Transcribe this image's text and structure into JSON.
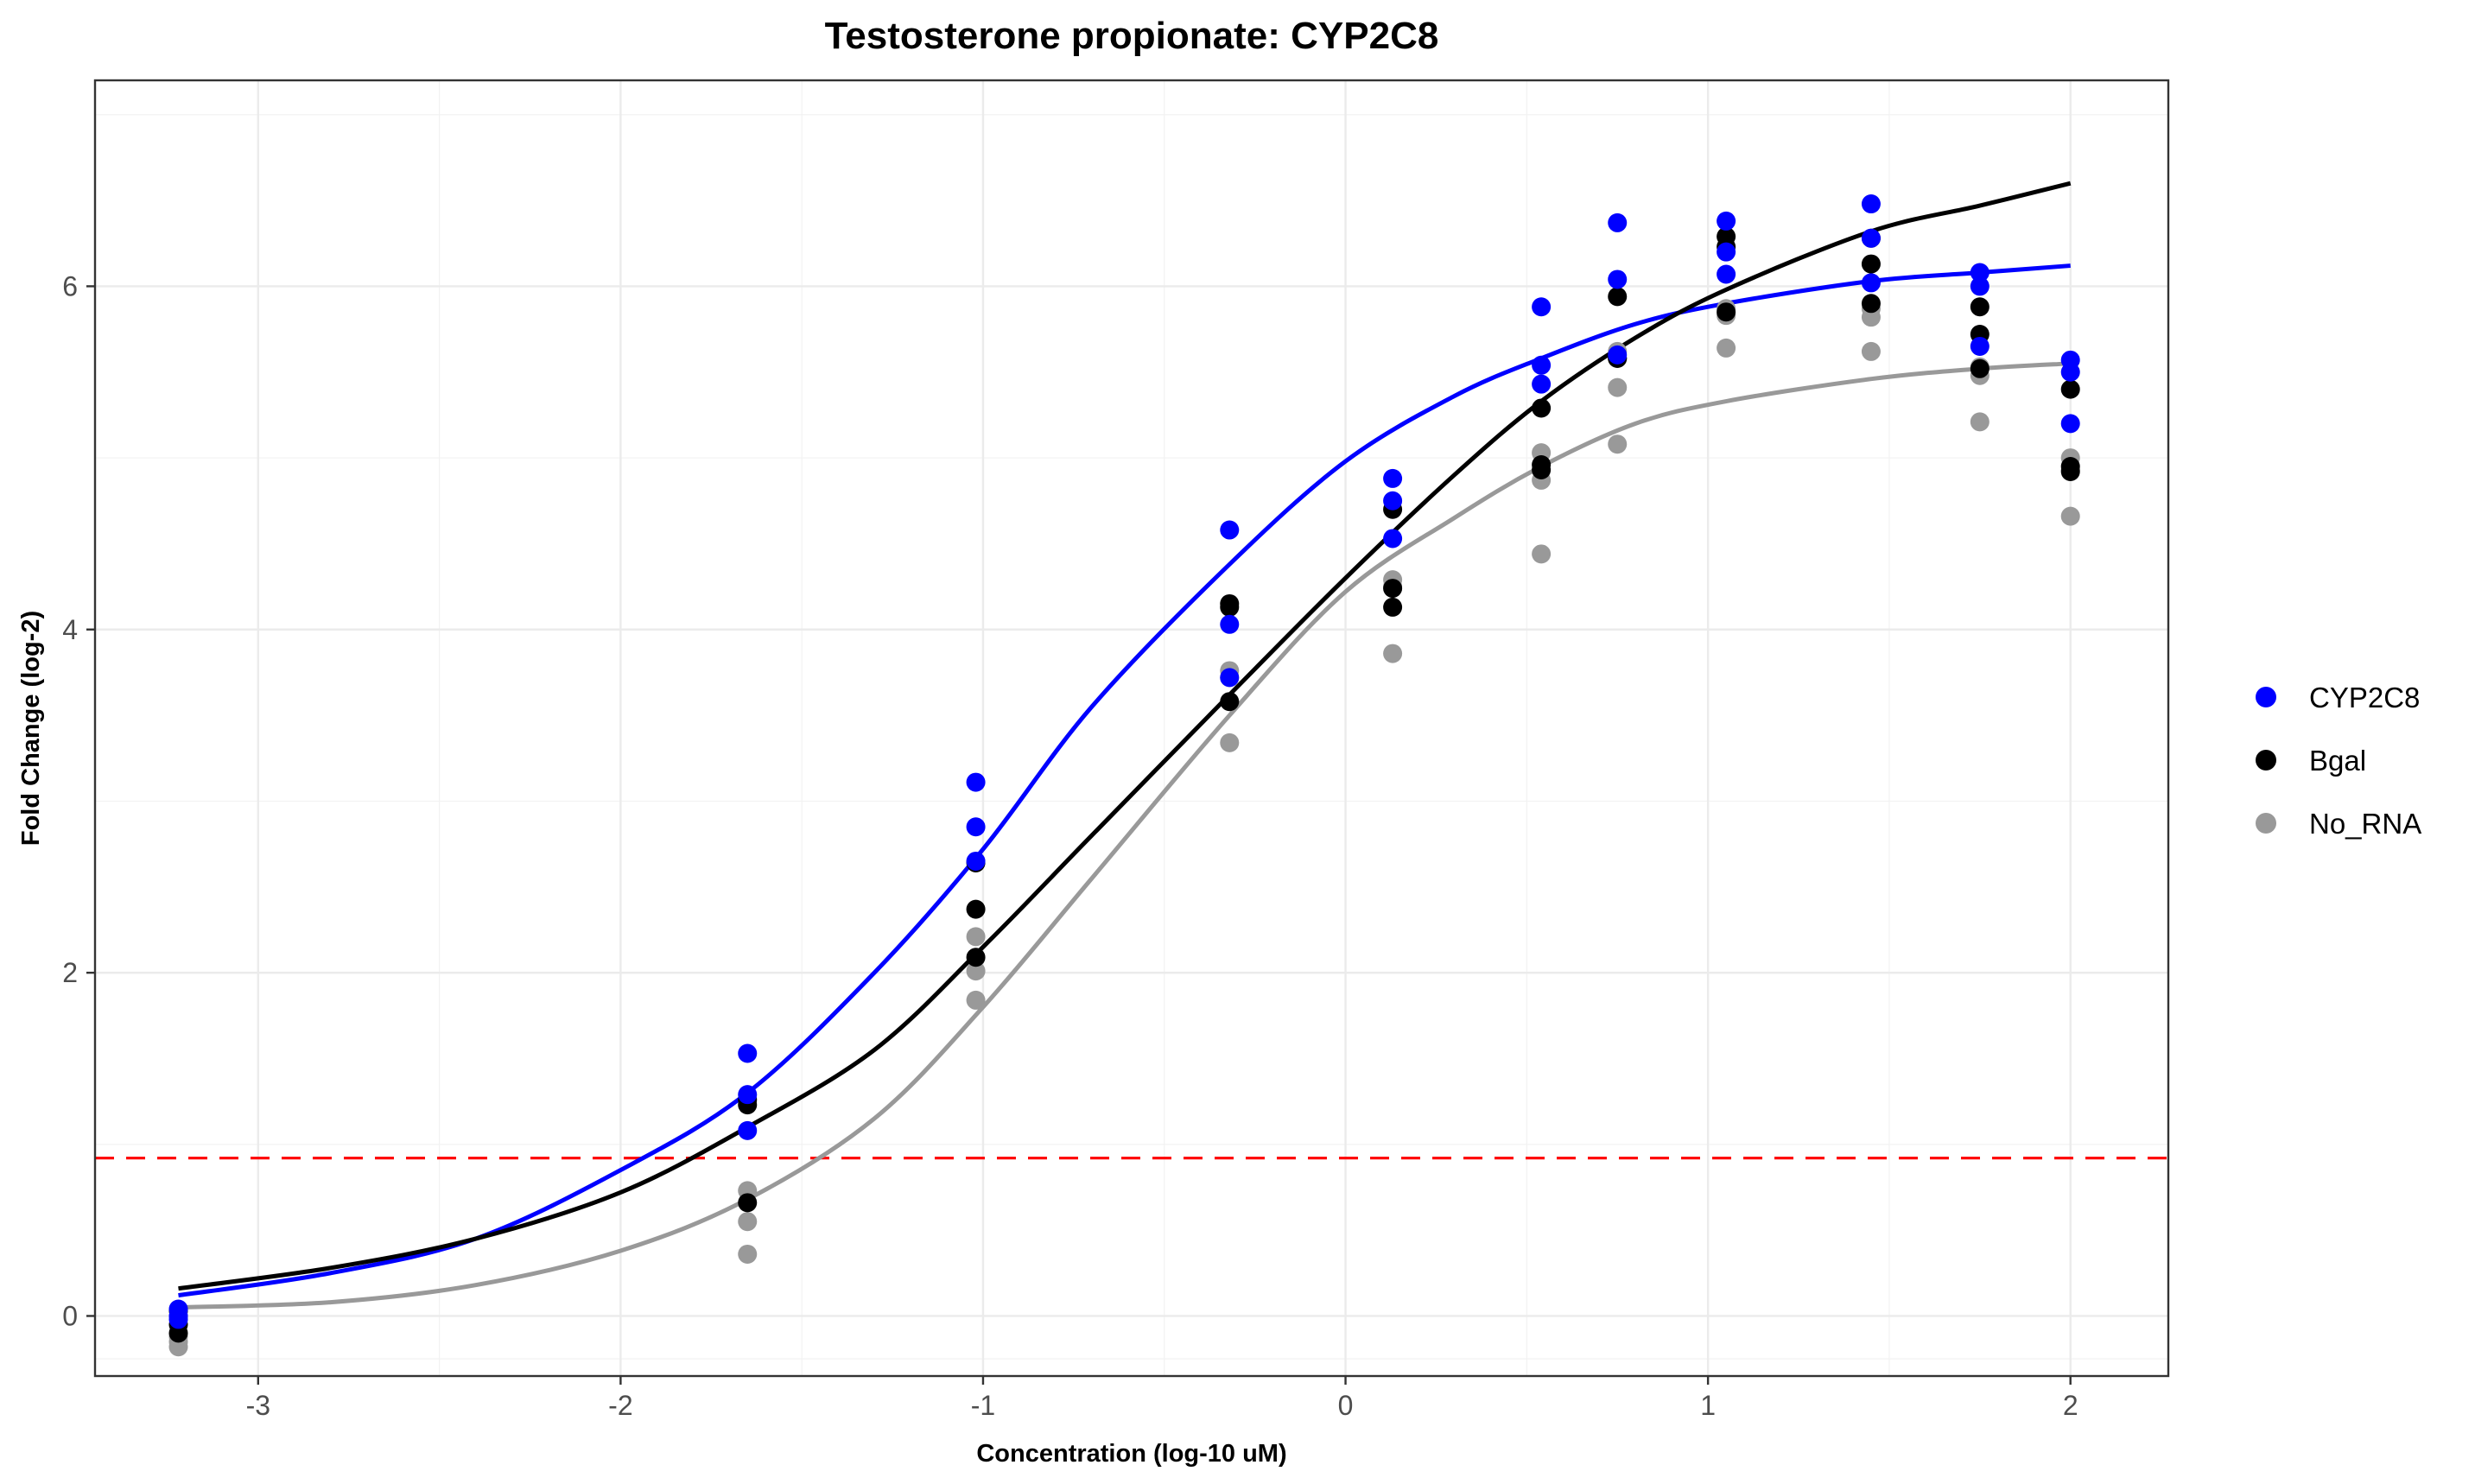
{
  "chart_data": {
    "type": "scatter",
    "title": "Testosterone propionate: CYP2C8",
    "xlabel": "Concentration (log-10 uM)",
    "ylabel": "Fold Change (log-2)",
    "xlim": [
      -3.45,
      2.27
    ],
    "ylim": [
      -0.35,
      7.2
    ],
    "x_ticks": [
      -3,
      -2,
      -1,
      0,
      1,
      2
    ],
    "y_ticks": [
      0,
      2,
      4,
      6
    ],
    "grid": true,
    "legend_position": "right",
    "threshold_line": {
      "y": 0.92,
      "color": "#ff0000",
      "style": "dashed"
    },
    "series": [
      {
        "name": "CYP2C8",
        "color": "#0000ff",
        "points": [
          [
            -3.22,
            0.04
          ],
          [
            -3.22,
            0.0
          ],
          [
            -3.22,
            -0.02
          ],
          [
            -1.65,
            1.53
          ],
          [
            -1.65,
            1.29
          ],
          [
            -1.65,
            1.08
          ],
          [
            -1.02,
            3.11
          ],
          [
            -1.02,
            2.85
          ],
          [
            -1.02,
            2.65
          ],
          [
            -0.32,
            4.58
          ],
          [
            -0.32,
            4.03
          ],
          [
            -0.32,
            3.72
          ],
          [
            0.13,
            4.88
          ],
          [
            0.13,
            4.75
          ],
          [
            0.13,
            4.53
          ],
          [
            0.54,
            5.88
          ],
          [
            0.54,
            5.54
          ],
          [
            0.54,
            5.43
          ],
          [
            0.75,
            6.37
          ],
          [
            0.75,
            6.04
          ],
          [
            0.75,
            5.6
          ],
          [
            1.05,
            6.38
          ],
          [
            1.05,
            6.2
          ],
          [
            1.05,
            6.07
          ],
          [
            1.45,
            6.48
          ],
          [
            1.45,
            6.28
          ],
          [
            1.45,
            6.02
          ],
          [
            1.75,
            6.08
          ],
          [
            1.75,
            6.0
          ],
          [
            1.75,
            5.65
          ],
          [
            2.0,
            5.57
          ],
          [
            2.0,
            5.5
          ],
          [
            2.0,
            5.2
          ]
        ],
        "curve": [
          [
            -3.22,
            0.12
          ],
          [
            -2.8,
            0.25
          ],
          [
            -2.4,
            0.45
          ],
          [
            -2.0,
            0.85
          ],
          [
            -1.65,
            1.3
          ],
          [
            -1.3,
            2.0
          ],
          [
            -1.0,
            2.72
          ],
          [
            -0.7,
            3.55
          ],
          [
            -0.32,
            4.38
          ],
          [
            0.0,
            4.98
          ],
          [
            0.3,
            5.36
          ],
          [
            0.54,
            5.58
          ],
          [
            0.8,
            5.78
          ],
          [
            1.05,
            5.9
          ],
          [
            1.45,
            6.03
          ],
          [
            1.75,
            6.08
          ],
          [
            2.0,
            6.12
          ]
        ]
      },
      {
        "name": "Bgal",
        "color": "#000000",
        "points": [
          [
            -3.22,
            0.03
          ],
          [
            -3.22,
            -0.05
          ],
          [
            -3.22,
            -0.1
          ],
          [
            -1.65,
            1.26
          ],
          [
            -1.65,
            1.23
          ],
          [
            -1.65,
            0.66
          ],
          [
            -1.02,
            2.64
          ],
          [
            -1.02,
            2.37
          ],
          [
            -1.02,
            2.09
          ],
          [
            -0.32,
            4.15
          ],
          [
            -0.32,
            4.13
          ],
          [
            -0.32,
            3.58
          ],
          [
            0.13,
            4.7
          ],
          [
            0.13,
            4.24
          ],
          [
            0.13,
            4.13
          ],
          [
            0.54,
            5.29
          ],
          [
            0.54,
            4.96
          ],
          [
            0.54,
            4.93
          ],
          [
            0.75,
            5.94
          ],
          [
            0.75,
            5.58
          ],
          [
            0.75,
            5.58
          ],
          [
            1.05,
            6.29
          ],
          [
            1.05,
            6.23
          ],
          [
            1.05,
            5.85
          ],
          [
            1.45,
            6.28
          ],
          [
            1.45,
            6.13
          ],
          [
            1.45,
            5.9
          ],
          [
            1.75,
            5.88
          ],
          [
            1.75,
            5.72
          ],
          [
            1.75,
            5.52
          ],
          [
            2.0,
            5.4
          ],
          [
            2.0,
            4.95
          ],
          [
            2.0,
            4.92
          ]
        ],
        "curve": [
          [
            -3.22,
            0.16
          ],
          [
            -2.8,
            0.28
          ],
          [
            -2.4,
            0.45
          ],
          [
            -2.0,
            0.72
          ],
          [
            -1.65,
            1.1
          ],
          [
            -1.3,
            1.55
          ],
          [
            -1.0,
            2.15
          ],
          [
            -0.7,
            2.8
          ],
          [
            -0.32,
            3.62
          ],
          [
            0.0,
            4.3
          ],
          [
            0.3,
            4.9
          ],
          [
            0.54,
            5.33
          ],
          [
            0.8,
            5.7
          ],
          [
            1.05,
            5.98
          ],
          [
            1.45,
            6.32
          ],
          [
            1.75,
            6.47
          ],
          [
            2.0,
            6.6
          ]
        ]
      },
      {
        "name": "No_RNA",
        "color": "#999999",
        "points": [
          [
            -3.22,
            -0.12
          ],
          [
            -3.22,
            -0.15
          ],
          [
            -3.22,
            -0.18
          ],
          [
            -1.65,
            0.73
          ],
          [
            -1.65,
            0.55
          ],
          [
            -1.65,
            0.36
          ],
          [
            -1.02,
            2.21
          ],
          [
            -1.02,
            2.01
          ],
          [
            -1.02,
            1.84
          ],
          [
            -0.32,
            3.76
          ],
          [
            -0.32,
            3.72
          ],
          [
            -0.32,
            3.34
          ],
          [
            0.13,
            4.29
          ],
          [
            0.13,
            3.86
          ],
          [
            0.13,
            4.25
          ],
          [
            0.54,
            5.03
          ],
          [
            0.54,
            4.87
          ],
          [
            0.54,
            4.44
          ],
          [
            0.75,
            5.62
          ],
          [
            0.75,
            5.41
          ],
          [
            0.75,
            5.08
          ],
          [
            1.05,
            5.87
          ],
          [
            1.05,
            5.83
          ],
          [
            1.05,
            5.64
          ],
          [
            1.45,
            5.87
          ],
          [
            1.45,
            5.82
          ],
          [
            1.45,
            5.62
          ],
          [
            1.75,
            5.53
          ],
          [
            1.75,
            5.48
          ],
          [
            1.75,
            5.21
          ],
          [
            2.0,
            5.0
          ],
          [
            2.0,
            4.93
          ],
          [
            2.0,
            4.66
          ]
        ],
        "curve": [
          [
            -3.22,
            0.05
          ],
          [
            -2.8,
            0.08
          ],
          [
            -2.4,
            0.18
          ],
          [
            -2.0,
            0.38
          ],
          [
            -1.65,
            0.68
          ],
          [
            -1.3,
            1.15
          ],
          [
            -1.0,
            1.8
          ],
          [
            -0.7,
            2.55
          ],
          [
            -0.32,
            3.5
          ],
          [
            0.0,
            4.22
          ],
          [
            0.3,
            4.65
          ],
          [
            0.54,
            4.95
          ],
          [
            0.8,
            5.2
          ],
          [
            1.05,
            5.33
          ],
          [
            1.45,
            5.46
          ],
          [
            1.75,
            5.52
          ],
          [
            2.0,
            5.55
          ]
        ]
      }
    ]
  }
}
